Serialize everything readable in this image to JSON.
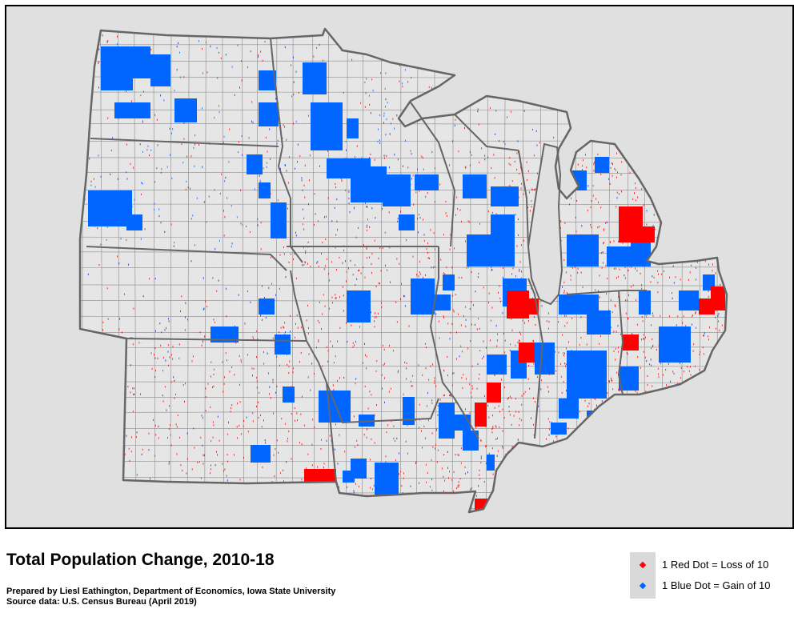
{
  "map": {
    "title": "Total Population Change, 2010-18",
    "credit_line": "Prepared by Liesl Eathington, Department of Economics, Iowa State University",
    "source_line": "Source data:  U.S. Census Bureau (April 2019)",
    "colors": {
      "background": "#e0e0e0",
      "land": "#e6e6e6",
      "border": "#666666",
      "loss": "#ff0000",
      "gain": "#0066ff"
    },
    "legend": [
      {
        "label": "1 Red Dot = Loss of 10",
        "color": "#ff0000"
      },
      {
        "label": "1 Blue Dot = Gain of 10",
        "color": "#0066ff"
      }
    ]
  }
}
